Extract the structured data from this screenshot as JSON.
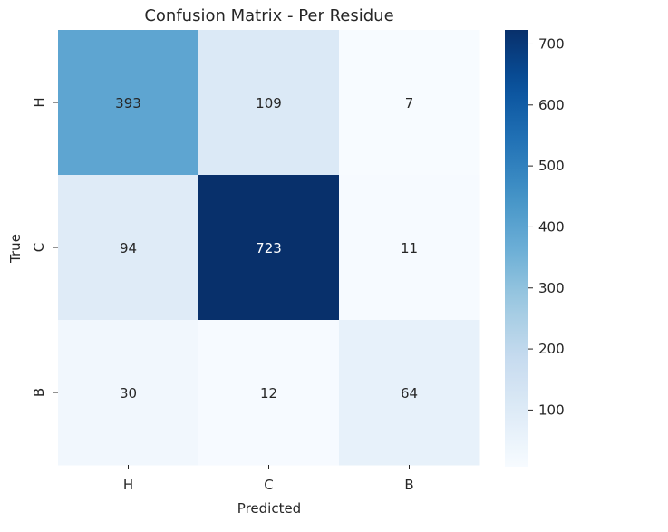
{
  "chart_data": {
    "type": "heatmap",
    "title": "Confusion Matrix - Per Residue",
    "xlabel": "Predicted",
    "ylabel": "True",
    "x_categories": [
      "H",
      "C",
      "B"
    ],
    "y_categories": [
      "H",
      "C",
      "B"
    ],
    "values": [
      [
        393,
        109,
        7
      ],
      [
        94,
        723,
        11
      ],
      [
        30,
        12,
        64
      ]
    ],
    "colormap": "Blues",
    "color_range": [
      7,
      723
    ],
    "colorbar_ticks": [
      100,
      200,
      300,
      400,
      500,
      600,
      700
    ],
    "grid": false,
    "annotations": true
  }
}
